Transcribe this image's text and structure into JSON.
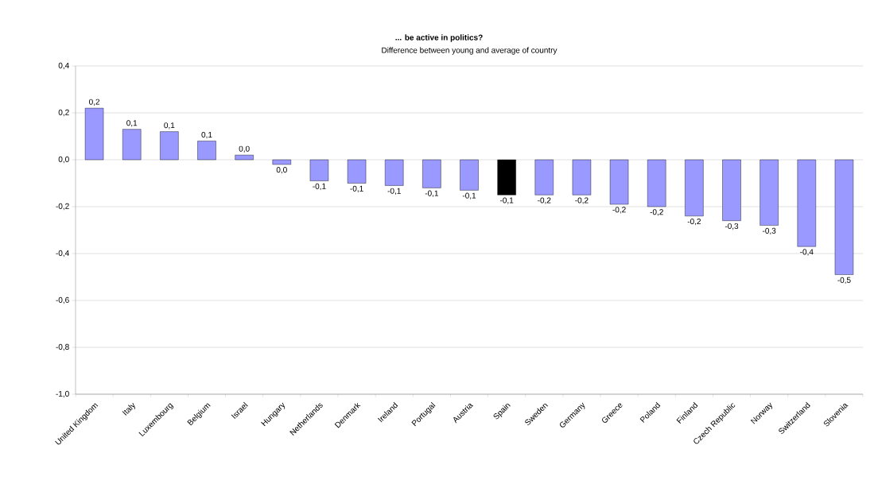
{
  "chart_data": {
    "type": "bar",
    "title": "... be active in politics?",
    "subtitle": "Difference between young and average of country",
    "categories": [
      "United Kingdom",
      "Italy",
      "Luxembourg",
      "Belgium",
      "Israel",
      "Hungary",
      "Netherlands",
      "Denmark",
      "Ireland",
      "Portugal",
      "Austria",
      "Spain",
      "Sweden",
      "Germany",
      "Greece",
      "Poland",
      "Finland",
      "Czech Republic",
      "Norway",
      "Switzerland",
      "Slovenia"
    ],
    "values": [
      0.22,
      0.13,
      0.12,
      0.08,
      0.02,
      -0.02,
      -0.09,
      -0.1,
      -0.11,
      -0.12,
      -0.13,
      -0.15,
      -0.15,
      -0.15,
      -0.19,
      -0.2,
      -0.24,
      -0.26,
      -0.28,
      -0.37,
      -0.49
    ],
    "value_labels": [
      "0,2",
      "0,1",
      "0,1",
      "0,1",
      "0,0",
      "0,0",
      "-0,1",
      "-0,1",
      "-0,1",
      "-0,1",
      "-0,1",
      "-0,1",
      "-0,2",
      "-0,2",
      "-0,2",
      "-0,2",
      "-0,2",
      "-0,3",
      "-0,3",
      "-0,4",
      "-0,5"
    ],
    "colors": [
      "#9999ff",
      "#9999ff",
      "#9999ff",
      "#9999ff",
      "#9999ff",
      "#9999ff",
      "#9999ff",
      "#9999ff",
      "#9999ff",
      "#9999ff",
      "#9999ff",
      "#000000",
      "#9999ff",
      "#9999ff",
      "#9999ff",
      "#9999ff",
      "#9999ff",
      "#9999ff",
      "#9999ff",
      "#9999ff",
      "#9999ff"
    ],
    "ylim": [
      -1.0,
      0.4
    ],
    "yticks": [
      {
        "value": -1.0,
        "label": "-1,0"
      },
      {
        "value": -0.8,
        "label": "-0,8"
      },
      {
        "value": -0.6,
        "label": "-0,6"
      },
      {
        "value": -0.4,
        "label": "-0,4"
      },
      {
        "value": -0.2,
        "label": "-0,2"
      },
      {
        "value": 0.0,
        "label": "0,0"
      },
      {
        "value": 0.2,
        "label": "0,2"
      },
      {
        "value": 0.4,
        "label": "0,4"
      }
    ],
    "grid": "y"
  }
}
